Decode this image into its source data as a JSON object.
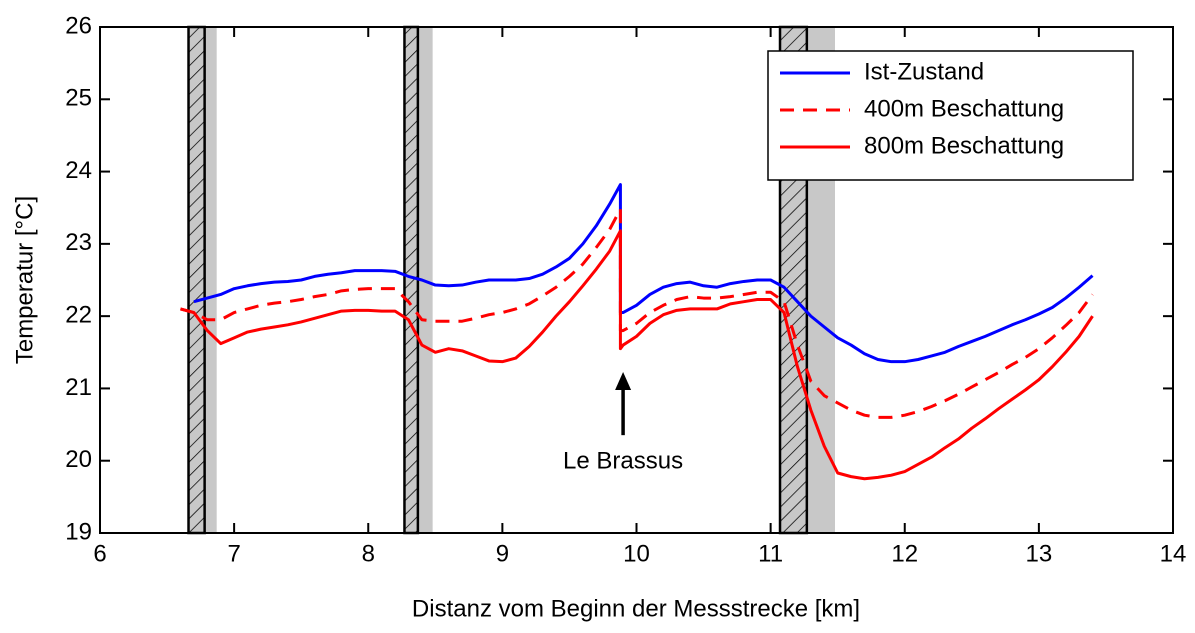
{
  "chart_data": {
    "type": "line",
    "xlabel": "Distanz vom Beginn der Messstrecke [km]",
    "ylabel": "Temperatur [°C]",
    "xlim": [
      6,
      14
    ],
    "ylim": [
      19,
      26
    ],
    "xticks": [
      6,
      7,
      8,
      9,
      10,
      11,
      12,
      13,
      14
    ],
    "yticks": [
      19,
      20,
      21,
      22,
      23,
      24,
      25,
      26
    ],
    "legend": "upper right",
    "x": [
      6.6,
      6.7,
      6.8,
      6.9,
      7.0,
      7.1,
      7.2,
      7.3,
      7.4,
      7.5,
      7.6,
      7.7,
      7.8,
      7.9,
      8.0,
      8.1,
      8.2,
      8.3,
      8.4,
      8.5,
      8.6,
      8.7,
      8.8,
      8.9,
      9.0,
      9.1,
      9.2,
      9.3,
      9.4,
      9.5,
      9.6,
      9.7,
      9.8,
      9.88,
      9.88,
      9.9,
      10.0,
      10.1,
      10.2,
      10.3,
      10.4,
      10.5,
      10.6,
      10.7,
      10.8,
      10.9,
      11.0,
      11.1,
      11.2,
      11.3,
      11.4,
      11.5,
      11.6,
      11.7,
      11.8,
      11.9,
      12.0,
      12.1,
      12.2,
      12.3,
      12.4,
      12.5,
      12.6,
      12.7,
      12.8,
      12.9,
      13.0,
      13.1,
      13.2,
      13.3,
      13.4
    ],
    "series": [
      {
        "name": "Ist-Zustand",
        "color": "#0000ff",
        "style": "solid",
        "values": [
          null,
          22.2,
          22.25,
          22.3,
          22.38,
          22.42,
          22.45,
          22.47,
          22.48,
          22.5,
          22.55,
          22.58,
          22.6,
          22.63,
          22.63,
          22.63,
          22.62,
          22.55,
          22.5,
          22.43,
          22.42,
          22.43,
          22.47,
          22.5,
          22.5,
          22.5,
          22.52,
          22.58,
          22.68,
          22.8,
          23.0,
          23.25,
          23.55,
          23.82,
          22.05,
          22.05,
          22.15,
          22.3,
          22.4,
          22.45,
          22.47,
          22.42,
          22.4,
          22.45,
          22.48,
          22.5,
          22.5,
          22.4,
          22.2,
          22.0,
          21.85,
          21.7,
          21.6,
          21.48,
          21.4,
          21.37,
          21.37,
          21.4,
          21.45,
          21.5,
          21.58,
          21.65,
          21.72,
          21.8,
          21.88,
          21.95,
          22.03,
          22.12,
          22.25,
          22.4,
          22.56
        ]
      },
      {
        "name": "400m Beschattung",
        "color": "#ff0000",
        "style": "dashed",
        "values": [
          22.1,
          22.05,
          21.95,
          21.95,
          22.05,
          22.1,
          22.15,
          22.18,
          22.2,
          22.23,
          22.27,
          22.3,
          22.35,
          22.37,
          22.38,
          22.38,
          22.38,
          22.2,
          21.95,
          21.93,
          21.93,
          21.93,
          21.97,
          22.02,
          22.05,
          22.1,
          22.17,
          22.28,
          22.4,
          22.55,
          22.72,
          22.95,
          23.2,
          23.48,
          21.8,
          21.8,
          21.9,
          22.05,
          22.15,
          22.23,
          22.27,
          22.25,
          22.25,
          22.27,
          22.3,
          22.33,
          22.33,
          22.2,
          21.6,
          21.1,
          20.9,
          20.8,
          20.7,
          20.63,
          20.6,
          20.6,
          20.63,
          20.68,
          20.75,
          20.83,
          20.92,
          21.02,
          21.12,
          21.22,
          21.33,
          21.43,
          21.55,
          21.7,
          21.87,
          22.05,
          22.3
        ]
      },
      {
        "name": "800m Beschattung",
        "color": "#ff0000",
        "style": "solid",
        "values": [
          22.1,
          22.05,
          21.8,
          21.62,
          21.7,
          21.78,
          21.82,
          21.85,
          21.88,
          21.92,
          21.97,
          22.02,
          22.07,
          22.08,
          22.08,
          22.07,
          22.07,
          21.95,
          21.6,
          21.5,
          21.55,
          21.52,
          21.45,
          21.38,
          21.37,
          21.42,
          21.58,
          21.78,
          22.0,
          22.2,
          22.42,
          22.65,
          22.9,
          23.18,
          21.55,
          21.6,
          21.72,
          21.9,
          22.02,
          22.08,
          22.1,
          22.1,
          22.1,
          22.17,
          22.2,
          22.23,
          22.23,
          22.05,
          21.3,
          20.7,
          20.2,
          19.83,
          19.78,
          19.75,
          19.77,
          19.8,
          19.85,
          19.95,
          20.05,
          20.18,
          20.3,
          20.45,
          20.58,
          20.72,
          20.85,
          20.98,
          21.12,
          21.3,
          21.5,
          21.72,
          22.0
        ]
      }
    ],
    "shaded_regions": [
      {
        "hatched": [
          6.66,
          6.78
        ],
        "gray": [
          6.78,
          6.87
        ]
      },
      {
        "hatched": [
          8.27,
          8.37
        ],
        "gray": [
          8.37,
          8.48
        ]
      },
      {
        "hatched": [
          11.07,
          11.27
        ],
        "gray": [
          11.27,
          11.48
        ]
      }
    ],
    "annotation": {
      "text": "Le Brassus",
      "xy": [
        9.9,
        21.2
      ],
      "xytext": [
        9.9,
        19.98
      ]
    }
  }
}
